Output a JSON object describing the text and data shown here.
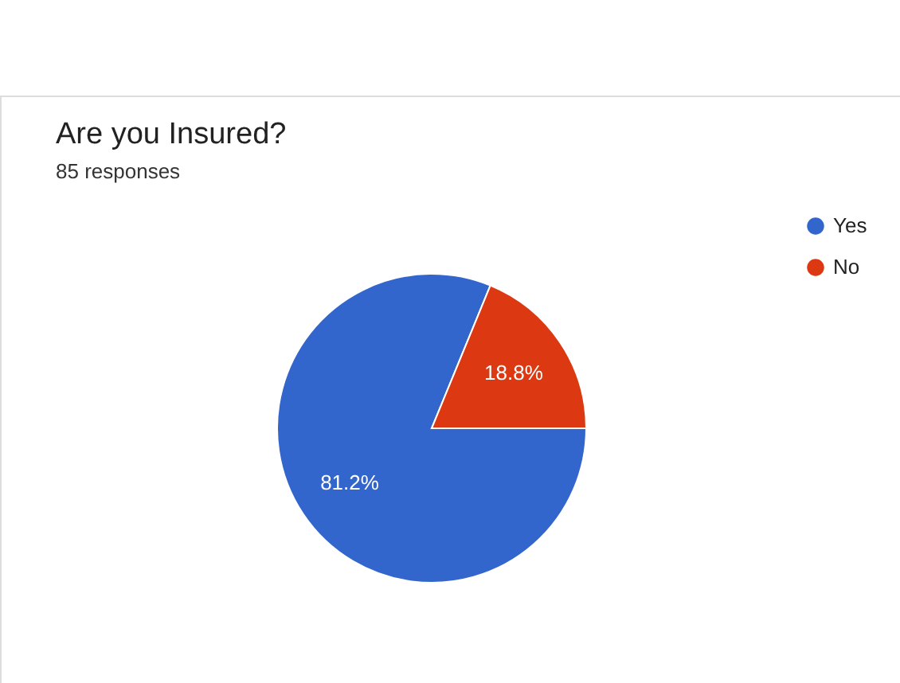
{
  "chart_data": {
    "type": "pie",
    "title": "Are you Insured?",
    "subtitle": "85 responses",
    "categories": [
      "Yes",
      "No"
    ],
    "values": [
      81.2,
      18.8
    ],
    "colors": [
      "#3366cc",
      "#dc3912"
    ],
    "value_labels": [
      "81.2%",
      "18.8%"
    ],
    "legend": "right"
  }
}
